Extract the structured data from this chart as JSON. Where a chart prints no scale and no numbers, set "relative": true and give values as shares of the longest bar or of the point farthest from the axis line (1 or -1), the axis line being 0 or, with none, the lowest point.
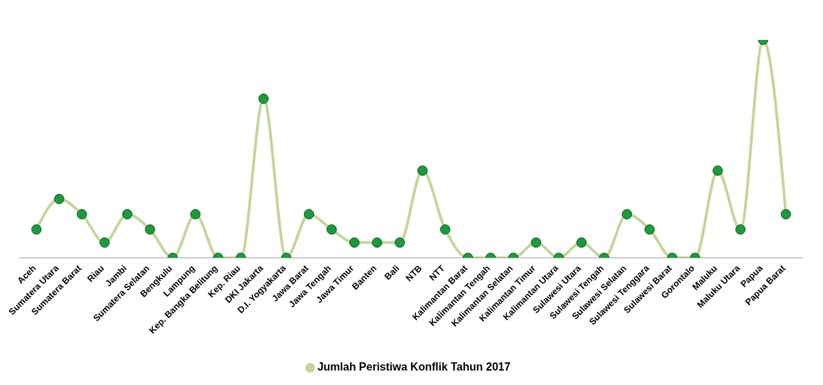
{
  "chart_data": {
    "type": "line",
    "relative": true,
    "categories": [
      "Aceh",
      "Sumatera Utara",
      "Sumatera Barat",
      "Riau",
      "Jambi",
      "Sumatera Selatan",
      "Bengkulu",
      "Lampung",
      "Kep. Bangka Belitung",
      "Kep. Riau",
      "DKI Jakarta",
      "D.I. Yogyakarta",
      "Jawa Barat",
      "Jawa Tengah",
      "Jawa Timur",
      "Banten",
      "Bali",
      "NTB",
      "NTT",
      "Kalimantan Barat",
      "Kalimantan Tengah",
      "Kalimantan Selatan",
      "Kalimantan Timur",
      "Kalimantan Utara",
      "Sulawesi Utara",
      "Sulawesi Tengah",
      "Sulawesi Selatan",
      "Sulawesi Tenggara",
      "Sulawesi Barat",
      "Gorontalo",
      "Maluku",
      "Maluku Utara",
      "Papua",
      "Papua Barat"
    ],
    "series": [
      {
        "name": "Jumlah Peristiwa Konflik Tahun 2017",
        "color": "#c3d69b",
        "values": [
          0.13,
          0.27,
          0.2,
          0.07,
          0.2,
          0.13,
          0,
          0.2,
          0,
          0,
          0.73,
          0,
          0.2,
          0.13,
          0.07,
          0.07,
          0.07,
          0.4,
          0.13,
          0,
          0,
          0,
          0.07,
          0,
          0.07,
          0,
          0.2,
          0.13,
          0,
          0,
          0.4,
          0.13,
          1,
          0.2
        ]
      }
    ],
    "legend": "bottom",
    "marker": "circle",
    "line_style": "solid"
  }
}
